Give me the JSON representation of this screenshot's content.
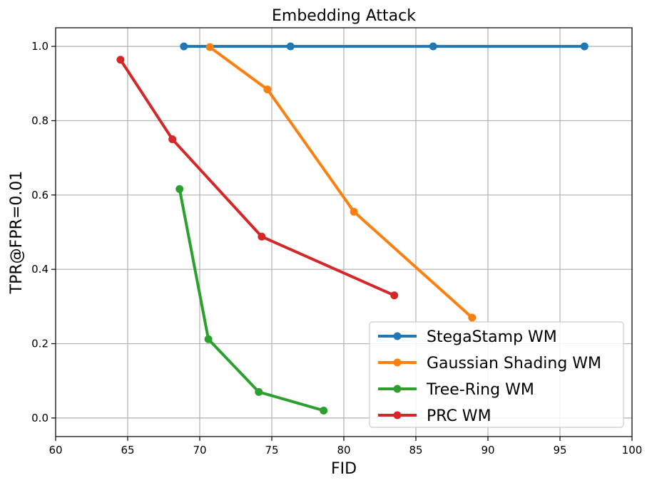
{
  "chart_data": {
    "type": "line",
    "title": "Embedding Attack",
    "xlabel": "FID",
    "ylabel": "TPR@FPR=0.01",
    "xlim": [
      60,
      100
    ],
    "ylim": [
      -0.05,
      1.05
    ],
    "xticks": [
      60,
      65,
      70,
      75,
      80,
      85,
      90,
      95,
      100
    ],
    "yticks": [
      0.0,
      0.2,
      0.4,
      0.6,
      0.8,
      1.0
    ],
    "xtick_labels": [
      "60",
      "65",
      "70",
      "75",
      "80",
      "85",
      "90",
      "95",
      "100"
    ],
    "ytick_labels": [
      "0.0",
      "0.2",
      "0.4",
      "0.6",
      "0.8",
      "1.0"
    ],
    "grid": true,
    "legend_position": "bottom-right",
    "series": [
      {
        "name": "StegaStamp WM",
        "color": "#1f77b4",
        "x": [
          68.9,
          76.3,
          86.2,
          96.7
        ],
        "y": [
          1.0,
          1.0,
          1.0,
          1.0
        ]
      },
      {
        "name": "Gaussian Shading WM",
        "color": "#ff7f0e",
        "x": [
          70.7,
          74.7,
          80.7,
          88.9
        ],
        "y": [
          0.998,
          0.884,
          0.555,
          0.27
        ]
      },
      {
        "name": "Tree-Ring WM",
        "color": "#2ca02c",
        "x": [
          68.6,
          70.6,
          74.1,
          78.6
        ],
        "y": [
          0.616,
          0.212,
          0.07,
          0.02
        ]
      },
      {
        "name": "PRC WM",
        "color": "#d62728",
        "x": [
          64.5,
          68.1,
          74.3,
          83.5
        ],
        "y": [
          0.964,
          0.75,
          0.488,
          0.33
        ]
      }
    ]
  }
}
